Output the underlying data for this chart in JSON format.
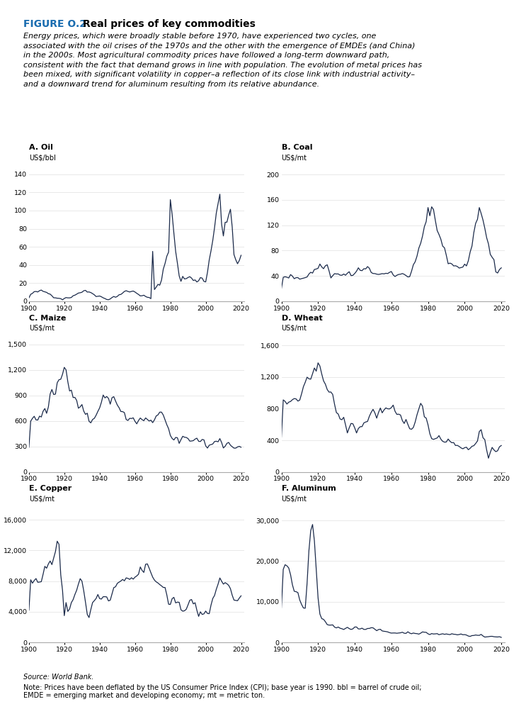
{
  "figure_label": "FIGURE O.2",
  "figure_title": "Real prices of key commodities",
  "line_color": "#1b2a4a",
  "line_width": 0.9,
  "background_color": "#ffffff",
  "panels": [
    {
      "label": "A. Oil",
      "unit": "US$/bbl",
      "yticks": [
        0,
        20,
        40,
        60,
        80,
        100,
        120,
        140
      ],
      "ymax": 148
    },
    {
      "label": "B. Coal",
      "unit": "US$/mt",
      "yticks": [
        0,
        40,
        80,
        120,
        160,
        200
      ],
      "ymax": 212
    },
    {
      "label": "C. Maize",
      "unit": "US$/mt",
      "yticks": [
        0,
        300,
        600,
        900,
        1200,
        1500
      ],
      "ymax": 1580
    },
    {
      "label": "D. Wheat",
      "unit": "US$/mt",
      "yticks": [
        0,
        400,
        800,
        1200,
        1600
      ],
      "ymax": 1700
    },
    {
      "label": "E. Copper",
      "unit": "US$/mt",
      "yticks": [
        0,
        4000,
        8000,
        12000,
        16000
      ],
      "ymax": 17500
    },
    {
      "label": "F. Aluminum",
      "unit": "US$/mt",
      "yticks": [
        0,
        10000,
        20000,
        30000
      ],
      "ymax": 33000
    }
  ],
  "source_text": "Source: World Bank.",
  "note_text": "Note: Prices have been deflated by the US Consumer Price Index (CPI); base year is 1990. bbl = barrel of crude oil;\nEMDE = emerging market and developing economy; mt = metric ton.",
  "desc_line1": "Energy prices, which were broadly stable before 1970, have experienced two cycles, one",
  "desc_line2": "associated with the oil crises of the 1970s and the other with the emergence of EMDEs (and China)",
  "desc_line3": "in the 2000s. Most agricultural commodity prices have followed a long-term downward path,",
  "desc_line4": "consistent with the fact that demand grows in line with population. The evolution of metal prices has",
  "desc_line5": "been mixed, with significant volatility in copper–a reflection of its close link with industrial activity–",
  "desc_line6": "and a downward trend for aluminum resulting from its relative abundance."
}
